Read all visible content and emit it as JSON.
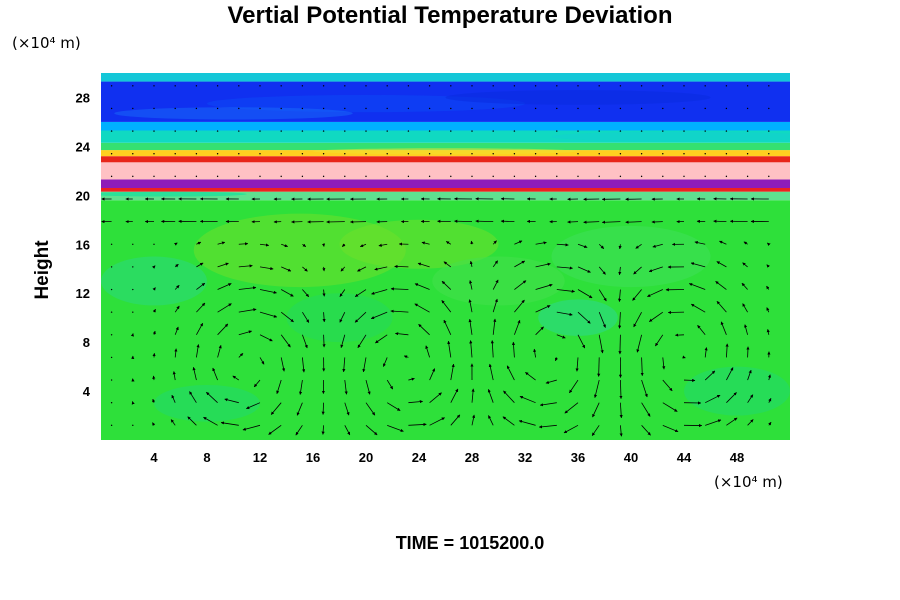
{
  "chart_data": {
    "type": "heatmap",
    "title": "Vertial Potential Temperature Deviation",
    "ylabel": "Height",
    "xlabel": "",
    "y_unit_label": "(×10⁴ m)",
    "x_unit_label": "(×10⁴ m)",
    "xlim": [
      0,
      52
    ],
    "ylim": [
      0,
      30
    ],
    "x_ticks": [
      4,
      8,
      12,
      16,
      20,
      24,
      28,
      32,
      36,
      40,
      44,
      48
    ],
    "y_ticks": [
      4,
      8,
      12,
      16,
      20,
      24,
      28
    ],
    "layers": [
      {
        "y0": 0,
        "y1": 19.6,
        "color": "#2ee03a"
      },
      {
        "y0": 19.6,
        "y1": 20.3,
        "color": "#5fe090"
      },
      {
        "y0": 20.3,
        "y1": 20.6,
        "color": "#ee2020"
      },
      {
        "y0": 20.6,
        "y1": 21.3,
        "color": "#8e1cb8"
      },
      {
        "y0": 21.3,
        "y1": 22.7,
        "color": "#ffc1c4"
      },
      {
        "y0": 22.7,
        "y1": 23.2,
        "color": "#e8261a"
      },
      {
        "y0": 23.2,
        "y1": 23.7,
        "color": "#ffd020"
      },
      {
        "y0": 23.7,
        "y1": 24.3,
        "color": "#35e070"
      },
      {
        "y0": 24.3,
        "y1": 25.3,
        "color": "#10d9c2"
      },
      {
        "y0": 25.3,
        "y1": 26.0,
        "color": "#00b0ff"
      },
      {
        "y0": 26.0,
        "y1": 29.3,
        "color": "#1030f0"
      },
      {
        "y0": 29.3,
        "y1": 30.0,
        "color": "#14c7d8"
      }
    ],
    "vortices": [
      {
        "x": 11,
        "y": 6,
        "direction": "cw"
      },
      {
        "x": 23,
        "y": 6,
        "direction": "ccw"
      },
      {
        "x": 34,
        "y": 7,
        "direction": "cw"
      },
      {
        "x": 44,
        "y": 7,
        "direction": "ccw"
      }
    ],
    "time_label": "TIME = 1015200.0"
  }
}
